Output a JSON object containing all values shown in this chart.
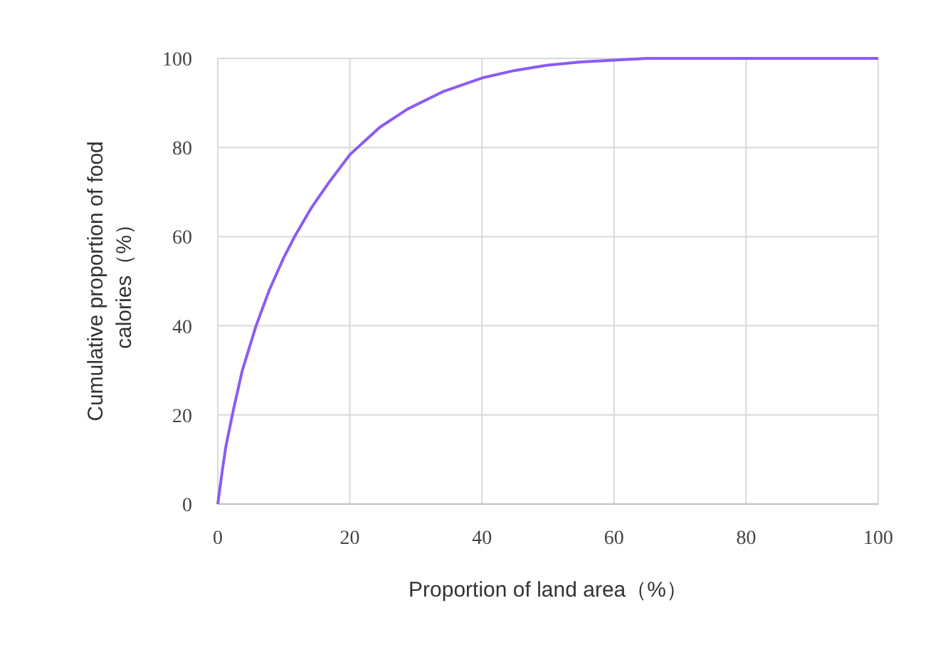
{
  "chart_data": {
    "type": "line",
    "xlabel": "Proportion of land area（%）",
    "ylabel": "Cumulative proportion of food calories（%）",
    "x": [
      0,
      0.6,
      1.2,
      2.3,
      3.7,
      5.8,
      7.8,
      9.9,
      11.7,
      14.1,
      16.9,
      20,
      24.5,
      28.7,
      34.2,
      40,
      45,
      50,
      55,
      60,
      65,
      80,
      100
    ],
    "series": [
      {
        "color": "#8b5cf6",
        "values": [
          0,
          6.6,
          12.7,
          20.7,
          29.9,
          40,
          48,
          55,
          60.2,
          66.3,
          72.3,
          78.4,
          84.5,
          88.6,
          92.6,
          95.6,
          97.3,
          98.5,
          99.2,
          99.6,
          100,
          100,
          100
        ]
      }
    ],
    "xlim": [
      0,
      100
    ],
    "ylim": [
      0,
      100
    ],
    "xticks": [
      0,
      20,
      40,
      60,
      80,
      100
    ],
    "yticks": [
      0,
      20,
      40,
      60,
      80,
      100
    ],
    "grid": true,
    "marker": "none",
    "line_style": "solid"
  }
}
